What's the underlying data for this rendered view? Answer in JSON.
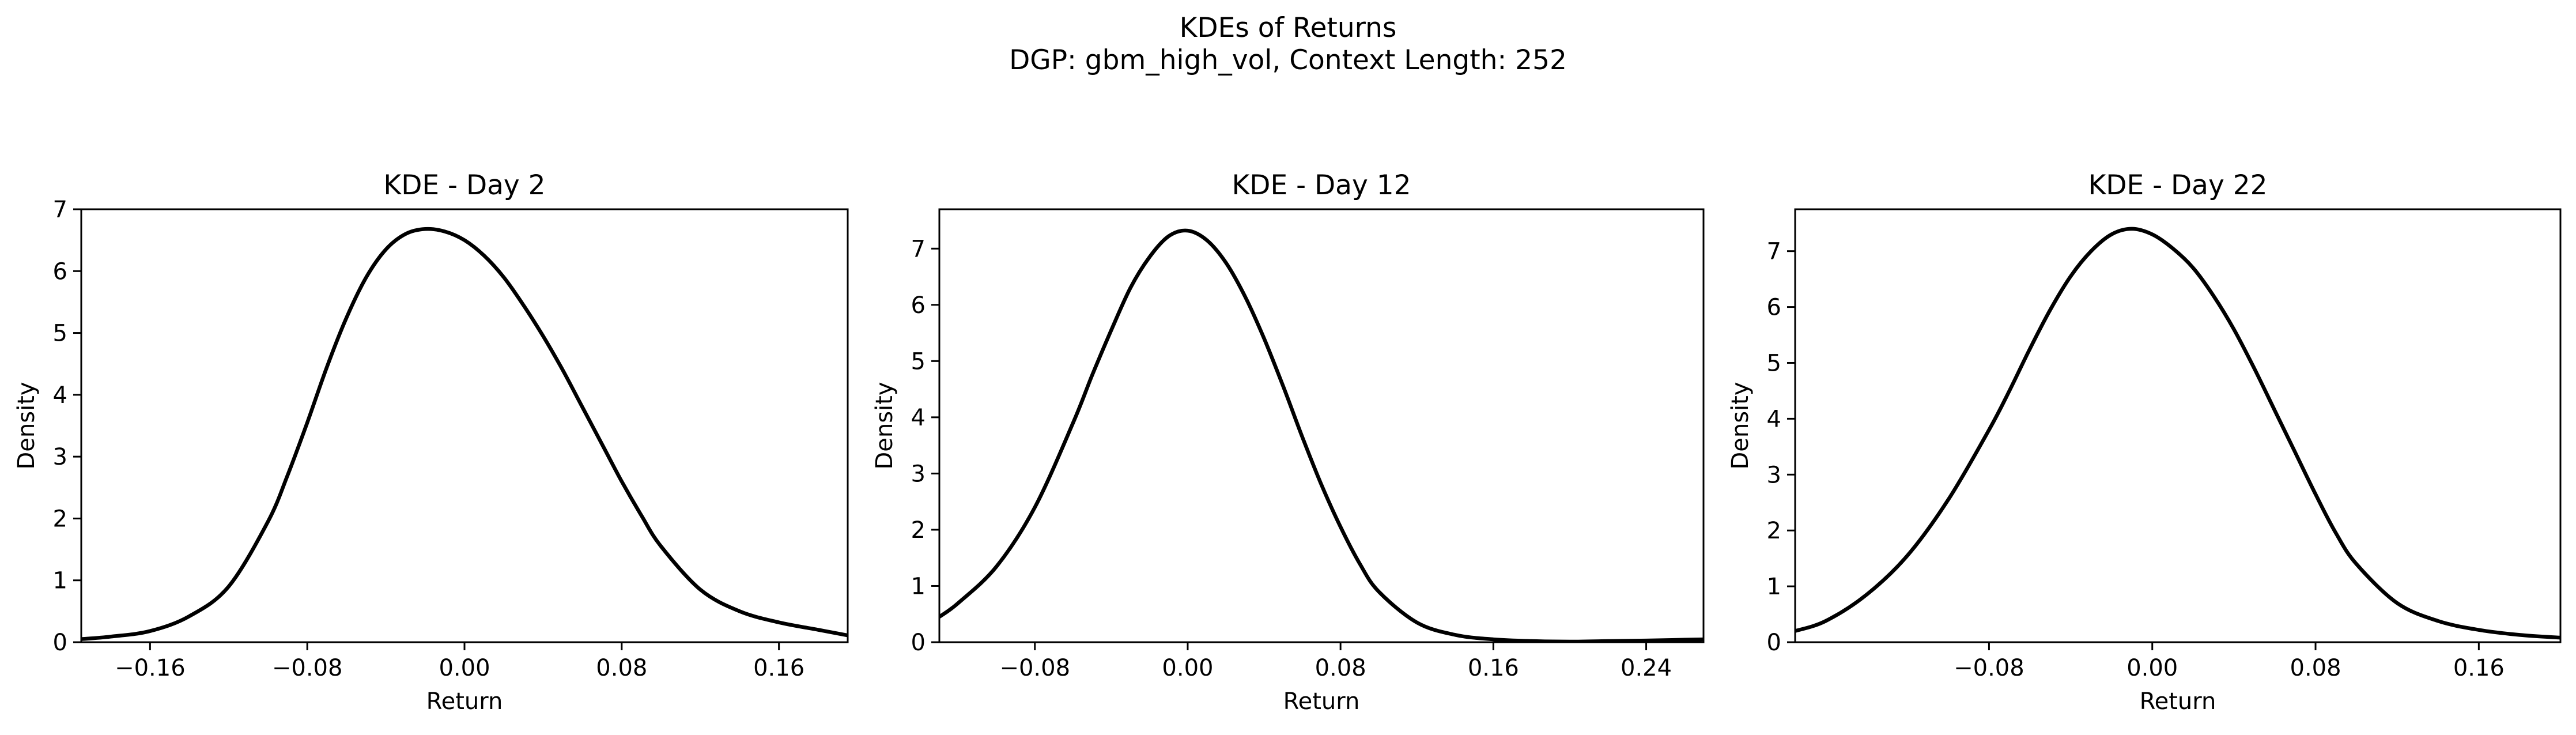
{
  "figure": {
    "title": "KDEs of Returns",
    "subtitle": "DGP: gbm_high_vol, Context Length: 252"
  },
  "chart_data": [
    {
      "type": "line",
      "title": "KDE - Day 2",
      "xlabel": "Return",
      "ylabel": "Density",
      "xlim": [
        -0.195,
        0.195
      ],
      "ylim": [
        0,
        7
      ],
      "xticks": [
        -0.16,
        -0.08,
        0.0,
        0.08,
        0.16
      ],
      "xtick_labels": [
        "−0.16",
        "−0.08",
        "0.00",
        "0.08",
        "0.16"
      ],
      "yticks": [
        0,
        1,
        2,
        3,
        4,
        5,
        6,
        7
      ],
      "ytick_labels": [
        "0",
        "1",
        "2",
        "3",
        "4",
        "5",
        "6",
        "7"
      ],
      "grid": false,
      "series": [
        {
          "color": "#000000",
          "x": [
            -0.195,
            -0.18,
            -0.16,
            -0.14,
            -0.12,
            -0.1,
            -0.09,
            -0.08,
            -0.07,
            -0.06,
            -0.05,
            -0.04,
            -0.03,
            -0.02,
            -0.01,
            0.0,
            0.01,
            0.02,
            0.03,
            0.04,
            0.05,
            0.06,
            0.07,
            0.08,
            0.09,
            0.1,
            0.12,
            0.14,
            0.16,
            0.18,
            0.195
          ],
          "y": [
            0.05,
            0.09,
            0.18,
            0.42,
            0.9,
            1.95,
            2.7,
            3.55,
            4.45,
            5.25,
            5.9,
            6.35,
            6.6,
            6.68,
            6.64,
            6.5,
            6.25,
            5.9,
            5.45,
            4.95,
            4.4,
            3.8,
            3.2,
            2.6,
            2.05,
            1.55,
            0.85,
            0.5,
            0.32,
            0.2,
            0.11
          ]
        }
      ]
    },
    {
      "type": "line",
      "title": "KDE - Day 12",
      "xlabel": "Return",
      "ylabel": "Density",
      "xlim": [
        -0.13,
        0.27
      ],
      "ylim": [
        0,
        7.7
      ],
      "xticks": [
        -0.08,
        0.0,
        0.08,
        0.16,
        0.24
      ],
      "xtick_labels": [
        "−0.08",
        "0.00",
        "0.08",
        "0.16",
        "0.24"
      ],
      "yticks": [
        0,
        1,
        2,
        3,
        4,
        5,
        6,
        7
      ],
      "ytick_labels": [
        "0",
        "1",
        "2",
        "3",
        "4",
        "5",
        "6",
        "7"
      ],
      "grid": false,
      "series": [
        {
          "color": "#000000",
          "x": [
            -0.13,
            -0.12,
            -0.1,
            -0.08,
            -0.06,
            -0.05,
            -0.04,
            -0.03,
            -0.02,
            -0.01,
            0.0,
            0.01,
            0.02,
            0.03,
            0.04,
            0.05,
            0.06,
            0.07,
            0.08,
            0.09,
            0.1,
            0.12,
            0.14,
            0.16,
            0.18,
            0.2,
            0.22,
            0.24,
            0.27
          ],
          "y": [
            0.45,
            0.7,
            1.35,
            2.4,
            3.9,
            4.75,
            5.55,
            6.3,
            6.85,
            7.22,
            7.32,
            7.15,
            6.75,
            6.15,
            5.4,
            4.55,
            3.65,
            2.8,
            2.05,
            1.4,
            0.9,
            0.35,
            0.13,
            0.05,
            0.02,
            0.01,
            0.02,
            0.03,
            0.05
          ]
        }
      ]
    },
    {
      "type": "line",
      "title": "KDE - Day 22",
      "xlabel": "Return",
      "ylabel": "Density",
      "xlim": [
        -0.175,
        0.2
      ],
      "ylim": [
        0,
        7.75
      ],
      "xticks": [
        -0.08,
        0.0,
        0.08,
        0.16
      ],
      "xtick_labels": [
        "−0.08",
        "0.00",
        "0.08",
        "0.16"
      ],
      "yticks": [
        0,
        1,
        2,
        3,
        4,
        5,
        6,
        7
      ],
      "ytick_labels": [
        "0",
        "1",
        "2",
        "3",
        "4",
        "5",
        "6",
        "7"
      ],
      "grid": false,
      "series": [
        {
          "color": "#000000",
          "x": [
            -0.175,
            -0.16,
            -0.14,
            -0.12,
            -0.1,
            -0.08,
            -0.07,
            -0.06,
            -0.05,
            -0.04,
            -0.03,
            -0.02,
            -0.01,
            0.0,
            0.01,
            0.02,
            0.03,
            0.04,
            0.05,
            0.06,
            0.07,
            0.08,
            0.09,
            0.1,
            0.12,
            0.14,
            0.16,
            0.18,
            0.2
          ],
          "y": [
            0.2,
            0.38,
            0.85,
            1.55,
            2.55,
            3.8,
            4.5,
            5.25,
            5.95,
            6.55,
            7.0,
            7.3,
            7.4,
            7.3,
            7.05,
            6.7,
            6.2,
            5.6,
            4.9,
            4.15,
            3.4,
            2.65,
            1.95,
            1.4,
            0.7,
            0.38,
            0.22,
            0.13,
            0.08
          ]
        }
      ]
    }
  ]
}
